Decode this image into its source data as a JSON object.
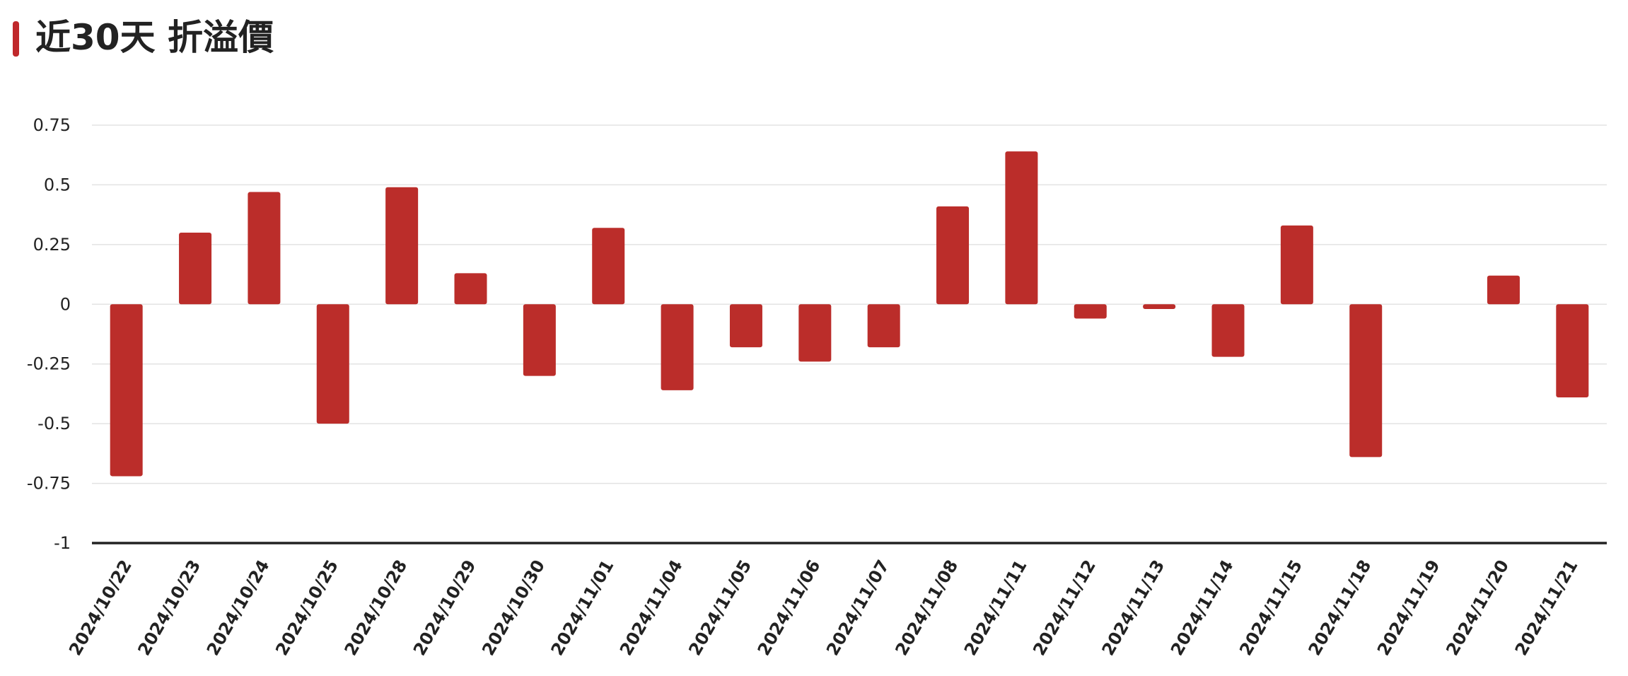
{
  "header": {
    "title": "近30天 折溢價",
    "accent_color": "#c0282b"
  },
  "chart_data": {
    "type": "bar",
    "title": "近30天 折溢價",
    "xlabel": "",
    "ylabel": "",
    "ylim": [
      -1,
      0.75
    ],
    "yticks": [
      0.75,
      0.5,
      0.25,
      0,
      -0.25,
      -0.5,
      -0.75,
      -1
    ],
    "ytick_labels": [
      "0.75",
      "0.5",
      "0.25",
      "0",
      "-0.25",
      "-0.5",
      "-0.75",
      "-1"
    ],
    "grid": true,
    "bar_color": "#bb2d2a",
    "categories": [
      "2024/10/22",
      "2024/10/23",
      "2024/10/24",
      "2024/10/25",
      "2024/10/28",
      "2024/10/29",
      "2024/10/30",
      "2024/11/01",
      "2024/11/04",
      "2024/11/05",
      "2024/11/06",
      "2024/11/07",
      "2024/11/08",
      "2024/11/11",
      "2024/11/12",
      "2024/11/13",
      "2024/11/14",
      "2024/11/15",
      "2024/11/18",
      "2024/11/19",
      "2024/11/20",
      "2024/11/21"
    ],
    "values": [
      -0.72,
      0.3,
      0.47,
      -0.5,
      0.49,
      0.13,
      -0.3,
      0.32,
      -0.36,
      -0.18,
      -0.24,
      -0.18,
      0.41,
      0.64,
      -0.06,
      -0.02,
      -0.22,
      0.33,
      -0.64,
      null,
      0.12,
      -0.39
    ]
  }
}
